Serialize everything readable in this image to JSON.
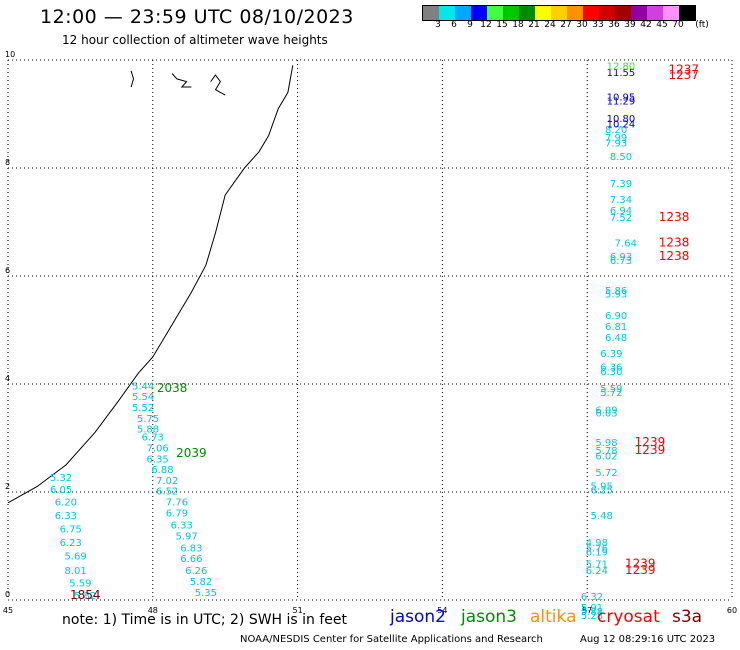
{
  "header": {
    "title": "12:00 — 23:59 UTC 08/10/2023",
    "subtitle": "12 hour collection of altimeter wave heights"
  },
  "legend": {
    "unit": "(ft)",
    "bins": [
      {
        "label": "3",
        "color": "#808080"
      },
      {
        "label": "6",
        "color": "#00e8e8"
      },
      {
        "label": "9",
        "color": "#00a8ff"
      },
      {
        "label": "12",
        "color": "#0000ff"
      },
      {
        "label": "15",
        "color": "#40ff40"
      },
      {
        "label": "18",
        "color": "#00c800"
      },
      {
        "label": "21",
        "color": "#008c00"
      },
      {
        "label": "24",
        "color": "#ffff00"
      },
      {
        "label": "27",
        "color": "#ffd000"
      },
      {
        "label": "30",
        "color": "#ff9000"
      },
      {
        "label": "33",
        "color": "#ff0000"
      },
      {
        "label": "36",
        "color": "#d00000"
      },
      {
        "label": "39",
        "color": "#a00000"
      },
      {
        "label": "42",
        "color": "#9000a0"
      },
      {
        "label": "45",
        "color": "#d040e0"
      },
      {
        "label": "70",
        "color": "#ff90ff"
      },
      {
        "label": "",
        "color": "#000000"
      }
    ]
  },
  "axes": {
    "x_ticks": [
      "45",
      "48",
      "51",
      "54",
      "57",
      "60"
    ],
    "y_ticks": [
      "0",
      "2",
      "4",
      "6",
      "8",
      "10"
    ],
    "xlim": [
      45,
      60
    ],
    "ylim": [
      0,
      10
    ]
  },
  "chart_data": {
    "type": "scatter",
    "xlim": [
      45,
      60
    ],
    "ylim": [
      0,
      10
    ],
    "grid": true,
    "groups": [
      {
        "color": "#00c8e0",
        "values": [
          {
            "x": 47.8,
            "y": 3.9,
            "v": "5.44"
          },
          {
            "x": 47.8,
            "y": 3.7,
            "v": "5.54"
          },
          {
            "x": 47.8,
            "y": 3.5,
            "v": "5.52"
          },
          {
            "x": 47.9,
            "y": 3.3,
            "v": "5.75"
          },
          {
            "x": 47.9,
            "y": 3.1,
            "v": "5.88"
          },
          {
            "x": 48.0,
            "y": 2.95,
            "v": "6.73"
          },
          {
            "x": 48.1,
            "y": 2.75,
            "v": "7.06"
          },
          {
            "x": 48.1,
            "y": 2.55,
            "v": "6.35"
          },
          {
            "x": 48.2,
            "y": 2.35,
            "v": "6.88"
          },
          {
            "x": 48.3,
            "y": 2.15,
            "v": "7.02"
          },
          {
            "x": 48.3,
            "y": 1.95,
            "v": "6.52"
          },
          {
            "x": 48.5,
            "y": 1.75,
            "v": "7.76"
          },
          {
            "x": 48.5,
            "y": 1.55,
            "v": "6.79"
          },
          {
            "x": 48.6,
            "y": 1.32,
            "v": "6.33"
          },
          {
            "x": 48.7,
            "y": 1.12,
            "v": "5.97"
          },
          {
            "x": 48.8,
            "y": 0.9,
            "v": "6.83"
          },
          {
            "x": 48.8,
            "y": 0.7,
            "v": "6.66"
          },
          {
            "x": 48.9,
            "y": 0.48,
            "v": "6.26"
          },
          {
            "x": 49.0,
            "y": 0.28,
            "v": "5.82"
          },
          {
            "x": 49.1,
            "y": 0.07,
            "v": "5.35"
          },
          {
            "x": 46.1,
            "y": 2.2,
            "v": "5.32"
          },
          {
            "x": 46.1,
            "y": 1.98,
            "v": "6.05"
          },
          {
            "x": 46.2,
            "y": 1.75,
            "v": "6.20"
          },
          {
            "x": 46.2,
            "y": 1.5,
            "v": "6.33"
          },
          {
            "x": 46.3,
            "y": 1.25,
            "v": "6.75"
          },
          {
            "x": 46.3,
            "y": 1.0,
            "v": "6.23"
          },
          {
            "x": 46.4,
            "y": 0.75,
            "v": "5.69"
          },
          {
            "x": 46.4,
            "y": 0.48,
            "v": "8.01"
          },
          {
            "x": 46.5,
            "y": 0.25,
            "v": "5.59"
          },
          {
            "x": 46.6,
            "y": 0.02,
            "v": "5.82"
          },
          {
            "x": 57.6,
            "y": 8.65,
            "v": "8.20"
          },
          {
            "x": 57.6,
            "y": 8.5,
            "v": "7.99"
          },
          {
            "x": 57.6,
            "y": 8.4,
            "v": "7.93"
          },
          {
            "x": 57.7,
            "y": 8.15,
            "v": "8.50"
          },
          {
            "x": 57.7,
            "y": 7.65,
            "v": "7.39"
          },
          {
            "x": 57.7,
            "y": 7.35,
            "v": "7.34"
          },
          {
            "x": 57.7,
            "y": 7.15,
            "v": "6.94"
          },
          {
            "x": 57.7,
            "y": 7.02,
            "v": "7.52"
          },
          {
            "x": 57.8,
            "y": 6.55,
            "v": "7.64"
          },
          {
            "x": 57.7,
            "y": 6.3,
            "v": "6.93"
          },
          {
            "x": 57.7,
            "y": 6.22,
            "v": "6.73"
          },
          {
            "x": 57.6,
            "y": 5.67,
            "v": "5.86"
          },
          {
            "x": 57.6,
            "y": 5.6,
            "v": "5.93"
          },
          {
            "x": 57.6,
            "y": 5.2,
            "v": "6.90"
          },
          {
            "x": 57.6,
            "y": 5.0,
            "v": "6.81"
          },
          {
            "x": 57.6,
            "y": 4.8,
            "v": "6.48"
          },
          {
            "x": 57.5,
            "y": 4.5,
            "v": "6.39"
          },
          {
            "x": 57.5,
            "y": 4.25,
            "v": "6.36"
          },
          {
            "x": 57.5,
            "y": 4.17,
            "v": "6.30"
          },
          {
            "x": 57.5,
            "y": 3.85,
            "v": "5.59"
          },
          {
            "x": 57.5,
            "y": 3.78,
            "v": "5.72"
          },
          {
            "x": 57.4,
            "y": 3.45,
            "v": "6.09"
          },
          {
            "x": 57.4,
            "y": 3.4,
            "v": "6.03"
          },
          {
            "x": 57.4,
            "y": 2.85,
            "v": "5.98"
          },
          {
            "x": 57.4,
            "y": 2.7,
            "v": "5.78"
          },
          {
            "x": 57.4,
            "y": 2.6,
            "v": "6.02"
          },
          {
            "x": 57.4,
            "y": 2.3,
            "v": "5.72"
          },
          {
            "x": 57.3,
            "y": 2.05,
            "v": "5.95"
          },
          {
            "x": 57.3,
            "y": 1.97,
            "v": "6.25"
          },
          {
            "x": 57.3,
            "y": 1.5,
            "v": "5.48"
          },
          {
            "x": 57.2,
            "y": 1.0,
            "v": "4.98"
          },
          {
            "x": 57.2,
            "y": 0.9,
            "v": "5.76"
          },
          {
            "x": 57.2,
            "y": 0.82,
            "v": "6.19"
          },
          {
            "x": 57.2,
            "y": 0.6,
            "v": "5.71"
          },
          {
            "x": 57.2,
            "y": 0.48,
            "v": "6.24"
          },
          {
            "x": 57.1,
            "y": 0.0,
            "v": "6.32"
          },
          {
            "x": 57.1,
            "y": -0.2,
            "v": "5.91"
          },
          {
            "x": 57.1,
            "y": -0.28,
            "v": "5.88"
          },
          {
            "x": 57.1,
            "y": -0.35,
            "v": "5.28"
          }
        ]
      },
      {
        "color": "#0000e0",
        "values": [
          {
            "x": 57.7,
            "y": 9.7,
            "v": "11.55"
          },
          {
            "x": 57.7,
            "y": 9.25,
            "v": "10.95"
          },
          {
            "x": 57.7,
            "y": 9.18,
            "v": "11.29"
          },
          {
            "x": 57.7,
            "y": 8.85,
            "v": "10.80"
          },
          {
            "x": 57.7,
            "y": 8.75,
            "v": "10.24"
          }
        ]
      },
      {
        "color": "#40e040",
        "values": [
          {
            "x": 57.7,
            "y": 9.82,
            "v": "12.80"
          }
        ]
      }
    ],
    "pass_times": [
      {
        "x": 48.4,
        "y": 3.85,
        "v": "2038",
        "color": "#008c00"
      },
      {
        "x": 48.8,
        "y": 2.65,
        "v": "2039",
        "color": "#008c00"
      },
      {
        "x": 46.6,
        "y": 0.02,
        "v": "1854",
        "color": "#800000"
      },
      {
        "x": 59.0,
        "y": 9.75,
        "v": "1237",
        "color": "#ff0000"
      },
      {
        "x": 59.0,
        "y": 9.65,
        "v": "1237",
        "color": "#ff0000"
      },
      {
        "x": 58.8,
        "y": 7.02,
        "v": "1238",
        "color": "#ff0000"
      },
      {
        "x": 58.8,
        "y": 6.55,
        "v": "1238",
        "color": "#ff0000"
      },
      {
        "x": 58.8,
        "y": 6.3,
        "v": "1238",
        "color": "#ff0000"
      },
      {
        "x": 58.3,
        "y": 2.85,
        "v": "1239",
        "color": "#ff0000"
      },
      {
        "x": 58.3,
        "y": 2.7,
        "v": "1239",
        "color": "#ff0000"
      },
      {
        "x": 58.1,
        "y": 0.6,
        "v": "1239",
        "color": "#ff0000"
      },
      {
        "x": 58.1,
        "y": 0.48,
        "v": "1239",
        "color": "#ff0000"
      }
    ]
  },
  "coastline": [
    [
      45.0,
      1.8
    ],
    [
      45.6,
      2.1
    ],
    [
      46.2,
      2.5
    ],
    [
      46.8,
      3.1
    ],
    [
      47.3,
      3.7
    ],
    [
      47.7,
      4.2
    ],
    [
      48.0,
      4.5
    ],
    [
      48.4,
      5.1
    ],
    [
      48.8,
      5.7
    ],
    [
      49.1,
      6.2
    ],
    [
      49.3,
      6.8
    ],
    [
      49.5,
      7.5
    ],
    [
      49.9,
      8.0
    ],
    [
      50.2,
      8.3
    ],
    [
      50.4,
      8.6
    ],
    [
      50.6,
      9.1
    ],
    [
      50.8,
      9.4
    ],
    [
      50.9,
      9.9
    ]
  ],
  "islands": [
    [
      [
        47.55,
        9.8
      ],
      [
        47.6,
        9.65
      ],
      [
        47.55,
        9.5
      ]
    ],
    [
      [
        48.4,
        9.75
      ],
      [
        48.5,
        9.65
      ],
      [
        48.7,
        9.6
      ],
      [
        48.6,
        9.5
      ],
      [
        48.8,
        9.5
      ]
    ],
    [
      [
        49.2,
        9.6
      ],
      [
        49.3,
        9.72
      ],
      [
        49.4,
        9.6
      ],
      [
        49.3,
        9.45
      ],
      [
        49.5,
        9.35
      ]
    ]
  ],
  "footer": {
    "note": "note:  1) Time is in UTC;  2) SWH is in feet",
    "satellites": [
      {
        "name": "jason2",
        "color": "#0000e0"
      },
      {
        "name": "jason3",
        "color": "#008c00"
      },
      {
        "name": "altika",
        "color": "#ff9000"
      },
      {
        "name": "cryosat",
        "color": "#ff0000"
      },
      {
        "name": "s3a",
        "color": "#800000"
      }
    ],
    "credit": "NOAA/NESDIS Center for Satellite Applications and Research",
    "timestamp": "Aug 12 08:29:16 UTC 2023"
  }
}
